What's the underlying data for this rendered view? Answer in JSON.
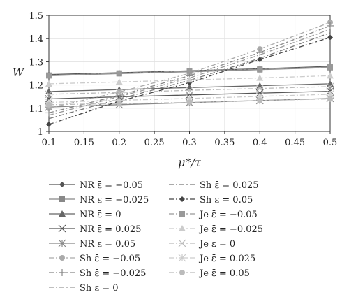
{
  "chart_data": {
    "type": "line",
    "title": "",
    "xlabel": "μ*/τ",
    "ylabel": "W",
    "xlim": [
      0.1,
      0.5
    ],
    "ylim": [
      1.0,
      1.5
    ],
    "xticks": [
      "0.1",
      "0.15",
      "0.2",
      "0.25",
      "0.3",
      "0.35",
      "0.4",
      "0.45",
      "0.5"
    ],
    "yticks": [
      "1",
      "1.1",
      "1.2",
      "1.3",
      "1.4",
      "1.5"
    ],
    "grid": true,
    "legend_placement": "bottom",
    "x": [
      0.1,
      0.2,
      0.3,
      0.4,
      0.5
    ],
    "series": [
      {
        "name": "NR ε̄ = −0.05",
        "values": [
          1.245,
          1.253,
          1.261,
          1.27,
          1.28
        ],
        "color": "#555555",
        "marker": "diamond",
        "dash": "solid"
      },
      {
        "name": "NR ε̄ = −0.025",
        "values": [
          1.24,
          1.249,
          1.257,
          1.266,
          1.275
        ],
        "color": "#888888",
        "marker": "square",
        "dash": "solid"
      },
      {
        "name": "NR ε̄ = 0",
        "values": [
          1.172,
          1.18,
          1.189,
          1.197,
          1.205
        ],
        "color": "#666666",
        "marker": "triangle",
        "dash": "solid"
      },
      {
        "name": "NR ε̄ = 0.025",
        "values": [
          1.14,
          1.149,
          1.157,
          1.165,
          1.173
        ],
        "color": "#555555",
        "marker": "x",
        "dash": "solid"
      },
      {
        "name": "NR ε̄ = 0.05",
        "values": [
          1.105,
          1.115,
          1.124,
          1.133,
          1.142
        ],
        "color": "#888888",
        "marker": "asterisk",
        "dash": "solid"
      },
      {
        "name": "Sh ε̄ = −0.05",
        "values": [
          1.1,
          1.17,
          1.25,
          1.355,
          1.47
        ],
        "color": "#aaaaaa",
        "marker": "circle",
        "dash": "dashdot"
      },
      {
        "name": "Sh ε̄ = −0.025",
        "values": [
          1.08,
          1.155,
          1.24,
          1.34,
          1.455
        ],
        "color": "#888888",
        "marker": "plus",
        "dash": "dashdot"
      },
      {
        "name": "Sh ε̄ = 0",
        "values": [
          1.07,
          1.15,
          1.23,
          1.33,
          1.44
        ],
        "color": "#999999",
        "marker": "none",
        "dash": "dashdot"
      },
      {
        "name": "Sh ε̄ = 0.025",
        "values": [
          1.055,
          1.14,
          1.22,
          1.315,
          1.425
        ],
        "color": "#777777",
        "marker": "none",
        "dash": "dashdot"
      },
      {
        "name": "Sh ε̄ = 0.05",
        "values": [
          1.03,
          1.13,
          1.21,
          1.31,
          1.405
        ],
        "color": "#444444",
        "marker": "diamond",
        "dash": "dashdot"
      },
      {
        "name": "Je ε̄ = −0.05",
        "values": [
          1.242,
          1.251,
          1.26,
          1.268,
          1.277
        ],
        "color": "#999999",
        "marker": "square",
        "dash": "dashdot"
      },
      {
        "name": "Je ε̄ = −0.025",
        "values": [
          1.205,
          1.213,
          1.222,
          1.23,
          1.24
        ],
        "color": "#cccccc",
        "marker": "triangle",
        "dash": "dashdot"
      },
      {
        "name": "Je ε̄ = 0",
        "values": [
          1.16,
          1.168,
          1.177,
          1.185,
          1.193
        ],
        "color": "#bbbbbb",
        "marker": "x",
        "dash": "dashdot"
      },
      {
        "name": "Je ε̄ = 0.025",
        "values": [
          1.125,
          1.134,
          1.142,
          1.151,
          1.16
        ],
        "color": "#cccccc",
        "marker": "asterisk",
        "dash": "dashdot"
      },
      {
        "name": "Je ε̄ = 0.05",
        "values": [
          1.115,
          1.12,
          1.125,
          1.133,
          1.14
        ],
        "color": "#bbbbbb",
        "marker": "circle",
        "dash": "dashdot"
      }
    ]
  }
}
